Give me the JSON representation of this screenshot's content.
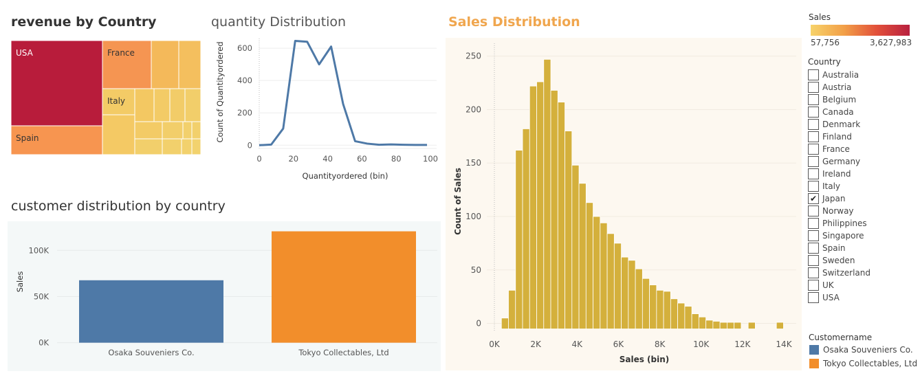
{
  "titles": {
    "treemap": "revenue by Country",
    "quantity": "quantity Distribution",
    "sales": "Sales Distribution",
    "customer": "customer distribution by country"
  },
  "colors": {
    "usa": "#b81c3b",
    "spain": "#f79550",
    "france": "#f59552",
    "italy": "#f3cb66",
    "yellow": "#f2c560",
    "line": "#4e79a7",
    "hist": "#d4b03c",
    "bar_osaka": "#4e79a7",
    "bar_tokyo": "#f28e2b",
    "sales_bg": "#fdf8f0",
    "cust_bg": "#f4f8f8"
  },
  "chart_data": [
    {
      "type": "treemap",
      "title": "revenue by Country",
      "labels": [
        "USA",
        "France",
        "Italy",
        "Spain"
      ]
    },
    {
      "type": "line",
      "title": "quantity Distribution",
      "xlabel": "Quantityordered (bin)",
      "ylabel": "Count of Quantityordered",
      "x": [
        0,
        7,
        14,
        21,
        28,
        35,
        42,
        49,
        56,
        63,
        70,
        77,
        84,
        91,
        98
      ],
      "y": [
        0,
        4,
        103,
        645,
        640,
        500,
        610,
        255,
        25,
        10,
        3,
        5,
        3,
        2,
        2
      ],
      "xlim": [
        0,
        100
      ],
      "ylim": [
        -20,
        660
      ],
      "xticks": [
        "0",
        "20",
        "40",
        "60",
        "80",
        "100"
      ],
      "yticks": [
        "0",
        "200",
        "400",
        "600"
      ]
    },
    {
      "type": "bar",
      "title": "customer distribution by country",
      "categories": [
        "Osaka Souveniers Co.",
        "Tokyo Collectables, Ltd"
      ],
      "values": [
        67600,
        120600
      ],
      "ylabel": "Sales",
      "ylim": [
        -4000,
        124000
      ],
      "yticks": [
        "0K",
        "50K",
        "100K"
      ]
    },
    {
      "type": "bar",
      "title": "Sales Distribution",
      "xlabel": "Sales (bin)",
      "ylabel": "Count of Sales",
      "bin_width": 341,
      "bin_starts": [
        341,
        682,
        1023,
        1364,
        1705,
        2046,
        2387,
        2728,
        3069,
        3410,
        3751,
        4092,
        4433,
        4774,
        5115,
        5456,
        5797,
        6138,
        6479,
        6820,
        7161,
        7502,
        7843,
        8184,
        8525,
        8866,
        9207,
        9548,
        9889,
        10230,
        10571,
        10912,
        11253,
        11594,
        11935,
        12276,
        12617,
        12958,
        13299,
        13640
      ],
      "values": [
        5,
        31,
        162,
        182,
        222,
        226,
        247,
        218,
        207,
        180,
        148,
        131,
        113,
        100,
        94,
        84,
        75,
        62,
        59,
        51,
        42,
        36,
        31,
        30,
        23,
        19,
        16,
        9,
        6,
        3,
        2,
        1,
        1,
        1,
        0,
        1,
        0,
        0,
        0,
        1
      ],
      "xlim": [
        -400,
        14400
      ],
      "ylim": [
        -8,
        262
      ],
      "xticks": [
        "0K",
        "2K",
        "4K",
        "6K",
        "8K",
        "10K",
        "12K",
        "14K"
      ],
      "yticks": [
        "0",
        "50",
        "100",
        "150",
        "200",
        "250"
      ]
    }
  ],
  "legend": {
    "sales_title": "Sales",
    "sales_min": "57,756",
    "sales_max": "3,627,983",
    "country_title": "Country",
    "countries": [
      "Australia",
      "Austria",
      "Belgium",
      "Canada",
      "Denmark",
      "Finland",
      "France",
      "Germany",
      "Ireland",
      "Italy",
      "Japan",
      "Norway",
      "Philippines",
      "Singapore",
      "Spain",
      "Sweden",
      "Switzerland",
      "UK",
      "USA"
    ],
    "selected": "Japan",
    "check_mark": "✔",
    "customer_title": "Customername",
    "customers": [
      "Osaka Souveniers Co.",
      "Tokyo Collectables, Ltd"
    ]
  }
}
